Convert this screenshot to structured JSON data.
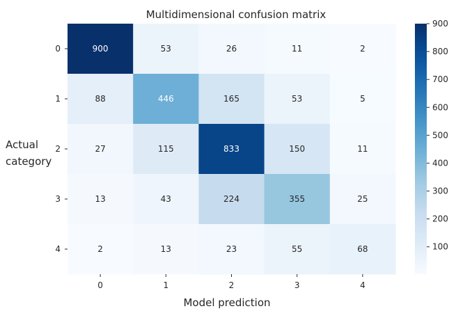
{
  "chart_data": {
    "type": "heatmap",
    "title": "Multidimensional confusion matrix",
    "xlabel": "Model prediction",
    "ylabel_line1": "Actual",
    "ylabel_line2": "category",
    "x_categories": [
      "0",
      "1",
      "2",
      "3",
      "4"
    ],
    "y_categories": [
      "0",
      "1",
      "2",
      "3",
      "4"
    ],
    "values": [
      [
        900,
        53,
        26,
        11,
        2
      ],
      [
        88,
        446,
        165,
        53,
        5
      ],
      [
        27,
        115,
        833,
        150,
        11
      ],
      [
        13,
        43,
        224,
        355,
        25
      ],
      [
        2,
        13,
        23,
        55,
        68
      ]
    ],
    "colormap": "Blues",
    "color_range": [
      2,
      900
    ],
    "colorbar_ticks": [
      100,
      200,
      300,
      400,
      500,
      600,
      700,
      800,
      900
    ],
    "colors": {
      "low": "#f7fbff",
      "high": "#08306b",
      "text_dark": "#262626",
      "text_light": "#ffffff"
    }
  }
}
